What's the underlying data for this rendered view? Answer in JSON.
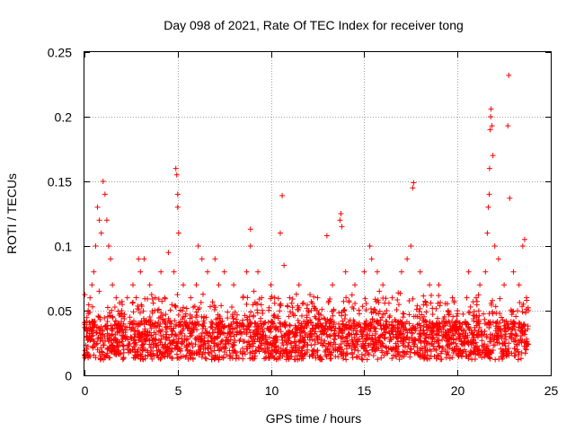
{
  "chart_data": {
    "type": "scatter",
    "title": "Day 098 of 2021, Rate Of TEC Index for receiver tong",
    "xlabel": "GPS time / hours",
    "ylabel": "ROTI / TECUs",
    "xlim": [
      0,
      25
    ],
    "ylim": [
      0,
      0.25
    ],
    "x_ticks": [
      0,
      5,
      10,
      15,
      20,
      25
    ],
    "x_tick_labels": [
      "0",
      "5",
      "10",
      "15",
      "20",
      "25"
    ],
    "y_ticks": [
      0,
      0.05,
      0.1,
      0.15,
      0.2,
      0.25
    ],
    "y_tick_labels": [
      "0",
      "0.05",
      "0.1",
      "0.15",
      "0.2",
      "0.25"
    ],
    "grid": true,
    "marker": "+",
    "color": "#ff0000",
    "series": [
      {
        "name": "ROTI",
        "points": [
          [
            0.1,
            0.03
          ],
          [
            0.2,
            0.05
          ],
          [
            0.3,
            0.06
          ],
          [
            0.4,
            0.07
          ],
          [
            0.5,
            0.08
          ],
          [
            0.6,
            0.1
          ],
          [
            0.7,
            0.13
          ],
          [
            0.8,
            0.12
          ],
          [
            0.9,
            0.11
          ],
          [
            1.0,
            0.15
          ],
          [
            1.1,
            0.14
          ],
          [
            1.2,
            0.12
          ],
          [
            1.3,
            0.1
          ],
          [
            1.4,
            0.09
          ],
          [
            1.5,
            0.07
          ],
          [
            1.7,
            0.06
          ],
          [
            2.0,
            0.05
          ],
          [
            2.3,
            0.06
          ],
          [
            2.6,
            0.07
          ],
          [
            2.9,
            0.09
          ],
          [
            3.0,
            0.08
          ],
          [
            3.2,
            0.09
          ],
          [
            3.5,
            0.07
          ],
          [
            3.8,
            0.06
          ],
          [
            4.1,
            0.08
          ],
          [
            4.3,
            0.06
          ],
          [
            4.5,
            0.095
          ],
          [
            4.8,
            0.08
          ],
          [
            4.9,
            0.16
          ],
          [
            4.95,
            0.155
          ],
          [
            5.0,
            0.14
          ],
          [
            5.0,
            0.13
          ],
          [
            5.05,
            0.11
          ],
          [
            5.3,
            0.07
          ],
          [
            5.7,
            0.06
          ],
          [
            6.0,
            0.07
          ],
          [
            6.1,
            0.1
          ],
          [
            6.3,
            0.09
          ],
          [
            6.6,
            0.08
          ],
          [
            7.0,
            0.09
          ],
          [
            7.2,
            0.07
          ],
          [
            7.5,
            0.08
          ],
          [
            8.0,
            0.07
          ],
          [
            8.5,
            0.06
          ],
          [
            8.7,
            0.08
          ],
          [
            8.9,
            0.1
          ],
          [
            8.9,
            0.113
          ],
          [
            9.3,
            0.08
          ],
          [
            9.5,
            0.06
          ],
          [
            10.0,
            0.07
          ],
          [
            10.2,
            0.06
          ],
          [
            10.5,
            0.11
          ],
          [
            10.6,
            0.139
          ],
          [
            10.7,
            0.085
          ],
          [
            11.0,
            0.06
          ],
          [
            11.5,
            0.07
          ],
          [
            12.0,
            0.05
          ],
          [
            12.5,
            0.06
          ],
          [
            13.0,
            0.108
          ],
          [
            13.3,
            0.07
          ],
          [
            13.7,
            0.12
          ],
          [
            13.75,
            0.125
          ],
          [
            13.8,
            0.115
          ],
          [
            14.0,
            0.08
          ],
          [
            14.5,
            0.07
          ],
          [
            15.0,
            0.08
          ],
          [
            15.3,
            0.1
          ],
          [
            15.4,
            0.09
          ],
          [
            15.7,
            0.08
          ],
          [
            16.0,
            0.07
          ],
          [
            16.5,
            0.06
          ],
          [
            17.0,
            0.08
          ],
          [
            17.3,
            0.09
          ],
          [
            17.5,
            0.1
          ],
          [
            17.6,
            0.145
          ],
          [
            17.65,
            0.149
          ],
          [
            18.0,
            0.08
          ],
          [
            18.5,
            0.07
          ],
          [
            19.0,
            0.07
          ],
          [
            19.5,
            0.05
          ],
          [
            20.0,
            0.05
          ],
          [
            20.5,
            0.06
          ],
          [
            20.6,
            0.08
          ],
          [
            21.0,
            0.06
          ],
          [
            21.2,
            0.07
          ],
          [
            21.5,
            0.08
          ],
          [
            21.6,
            0.11
          ],
          [
            21.65,
            0.13
          ],
          [
            21.7,
            0.14
          ],
          [
            21.72,
            0.16
          ],
          [
            21.75,
            0.19
          ],
          [
            21.78,
            0.2
          ],
          [
            21.8,
            0.206
          ],
          [
            21.85,
            0.193
          ],
          [
            21.9,
            0.17
          ],
          [
            22.0,
            0.1
          ],
          [
            22.2,
            0.09
          ],
          [
            22.5,
            0.07
          ],
          [
            22.7,
            0.193
          ],
          [
            22.75,
            0.232
          ],
          [
            22.8,
            0.137
          ],
          [
            23.0,
            0.08
          ],
          [
            23.3,
            0.07
          ],
          [
            23.5,
            0.1
          ],
          [
            23.6,
            0.105
          ],
          [
            23.7,
            0.06
          ],
          [
            23.8,
            0.05
          ]
        ]
      }
    ]
  },
  "data_density_note": "dense cloud of '+' markers between ~0.005 and ~0.06 TECUs across 0-24 h"
}
